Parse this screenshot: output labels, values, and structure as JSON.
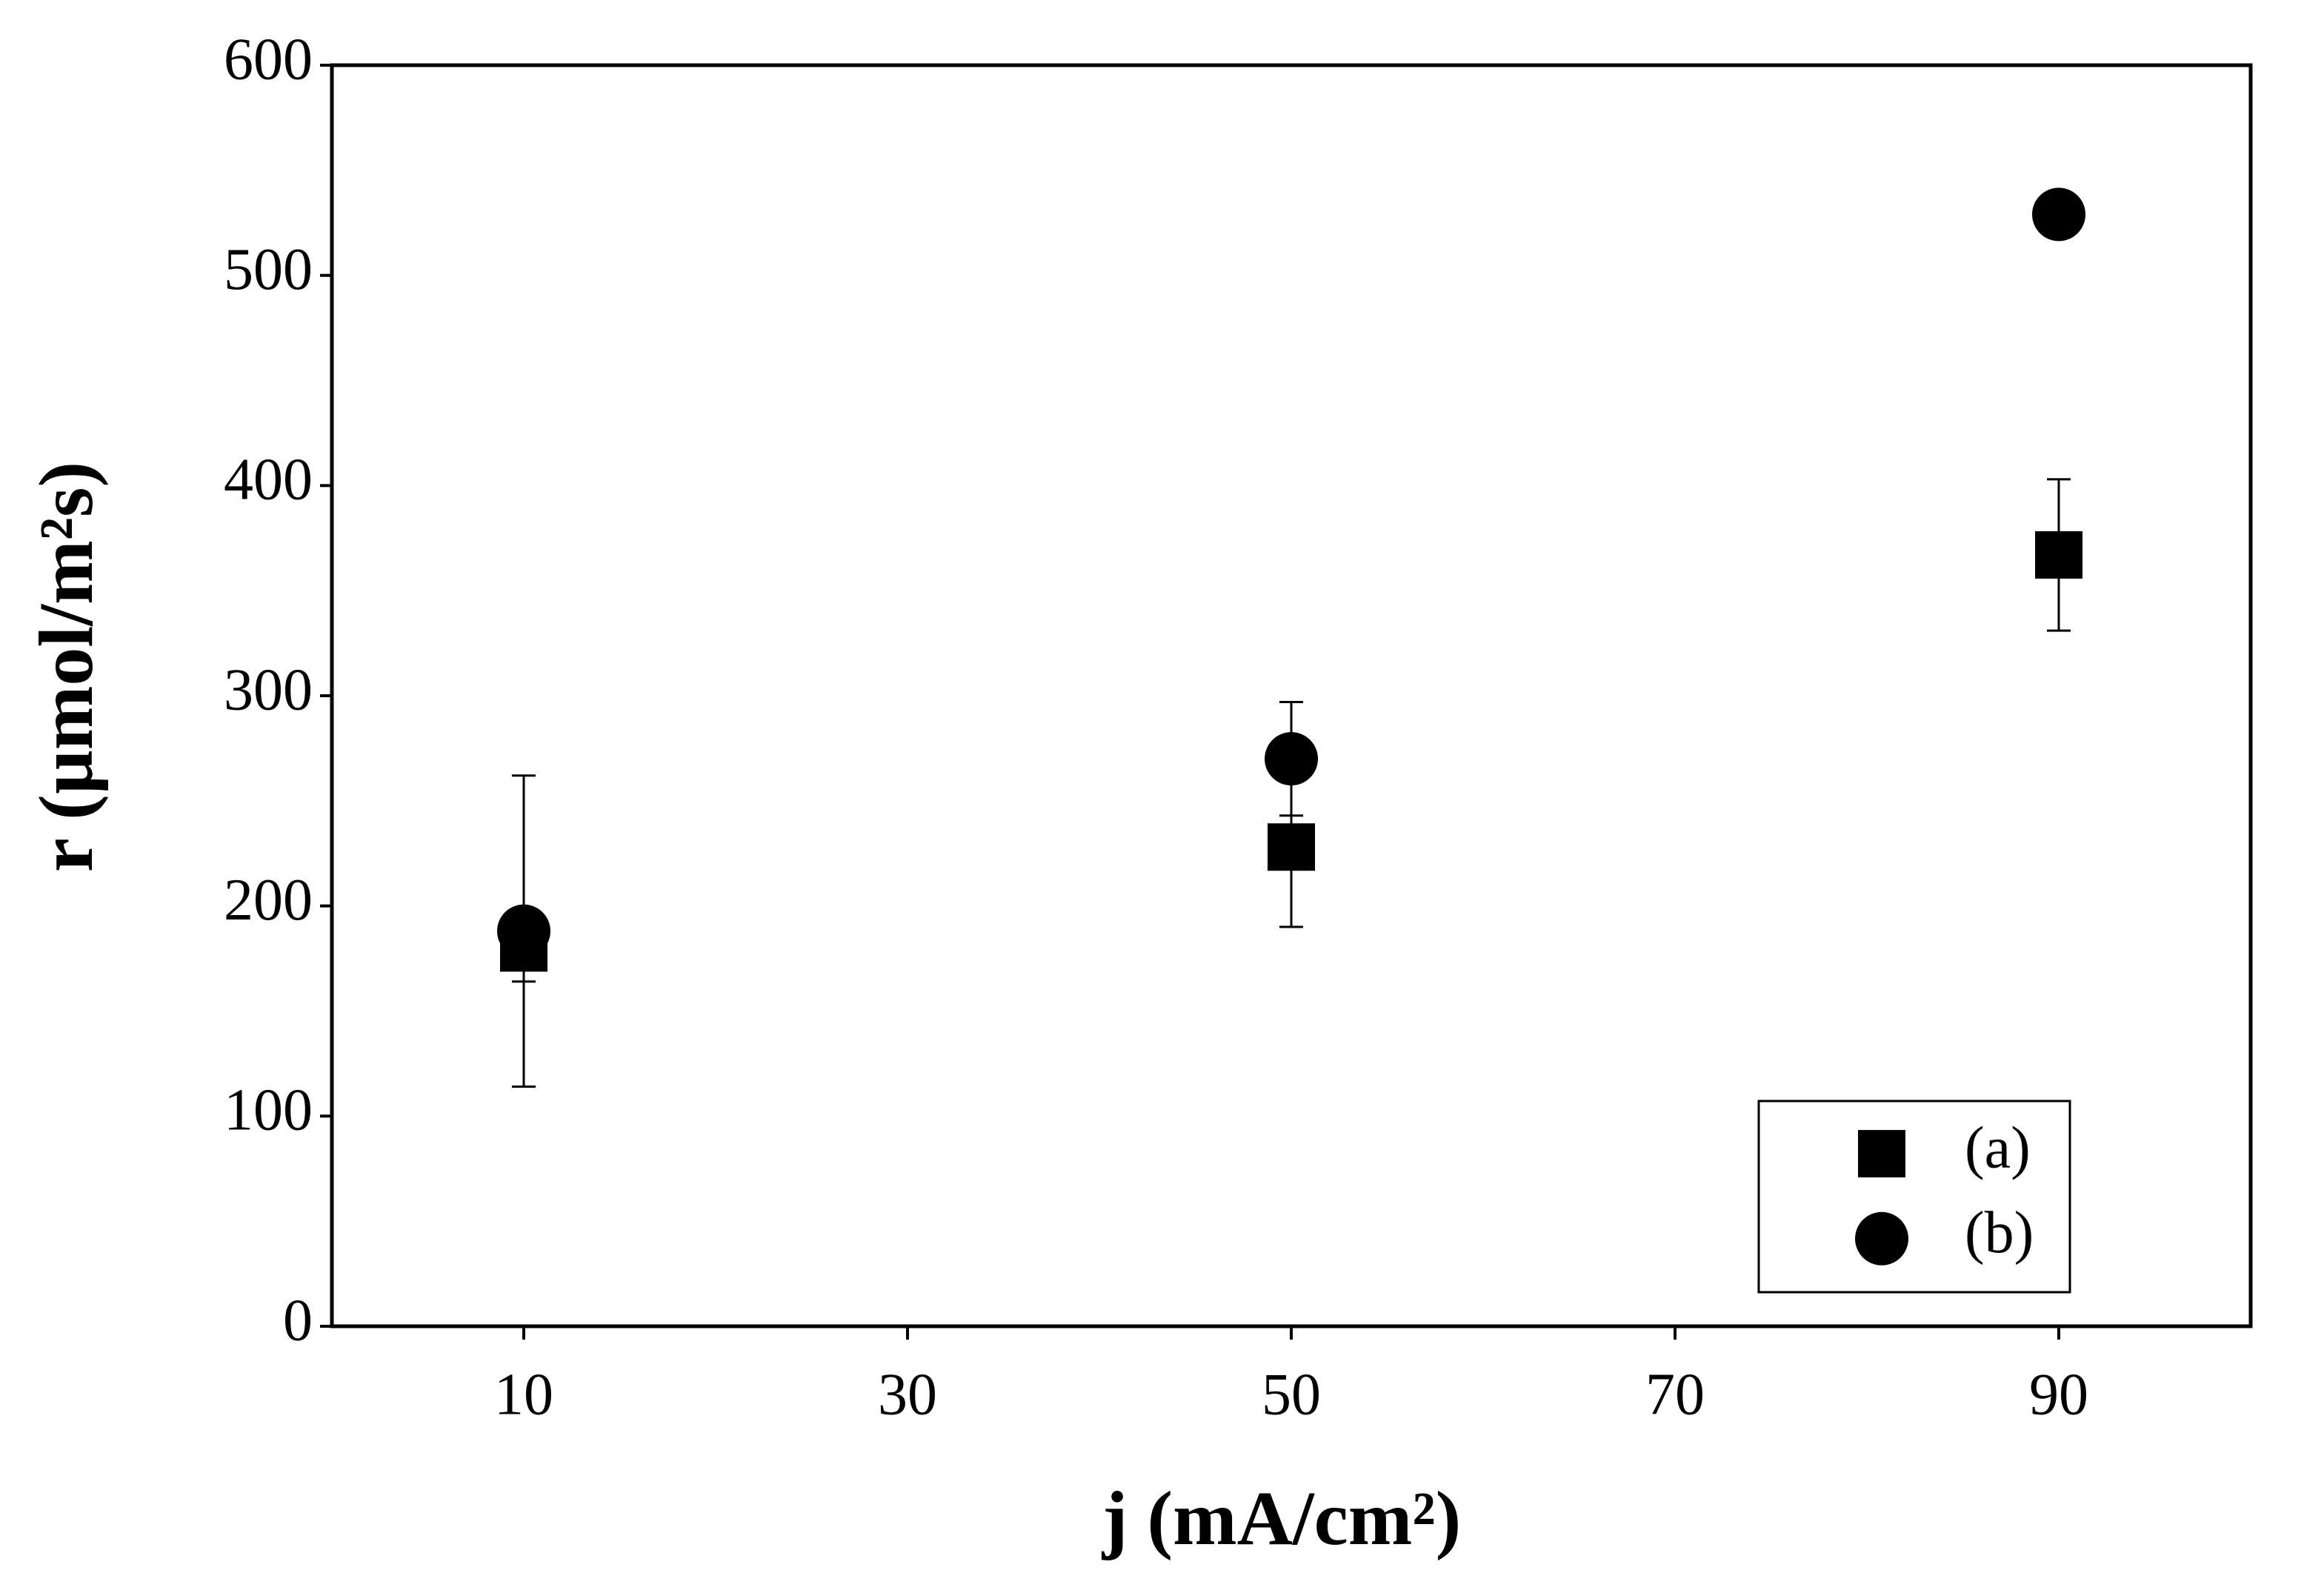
{
  "chart_data": {
    "type": "scatter",
    "xlabel": "j (mA/cm²)",
    "ylabel": "r (µmol/m²s)",
    "xlim": [
      0,
      100
    ],
    "xticks": [
      10,
      30,
      50,
      70,
      90
    ],
    "ylim": [
      0,
      600
    ],
    "yticks": [
      0,
      100,
      200,
      300,
      400,
      500,
      600
    ],
    "legend": "lower right",
    "series": [
      {
        "name": "(a)",
        "marker": "square",
        "color": "#000000",
        "x": [
          10,
          50,
          90
        ],
        "values": [
          180,
          228,
          367
        ],
        "errors": [
          16,
          38,
          36
        ]
      },
      {
        "name": "(b)",
        "marker": "circle",
        "color": "#000000",
        "x": [
          10,
          50,
          90
        ],
        "values": [
          188,
          270,
          529
        ],
        "errors": [
          74,
          27,
          null
        ]
      }
    ]
  }
}
